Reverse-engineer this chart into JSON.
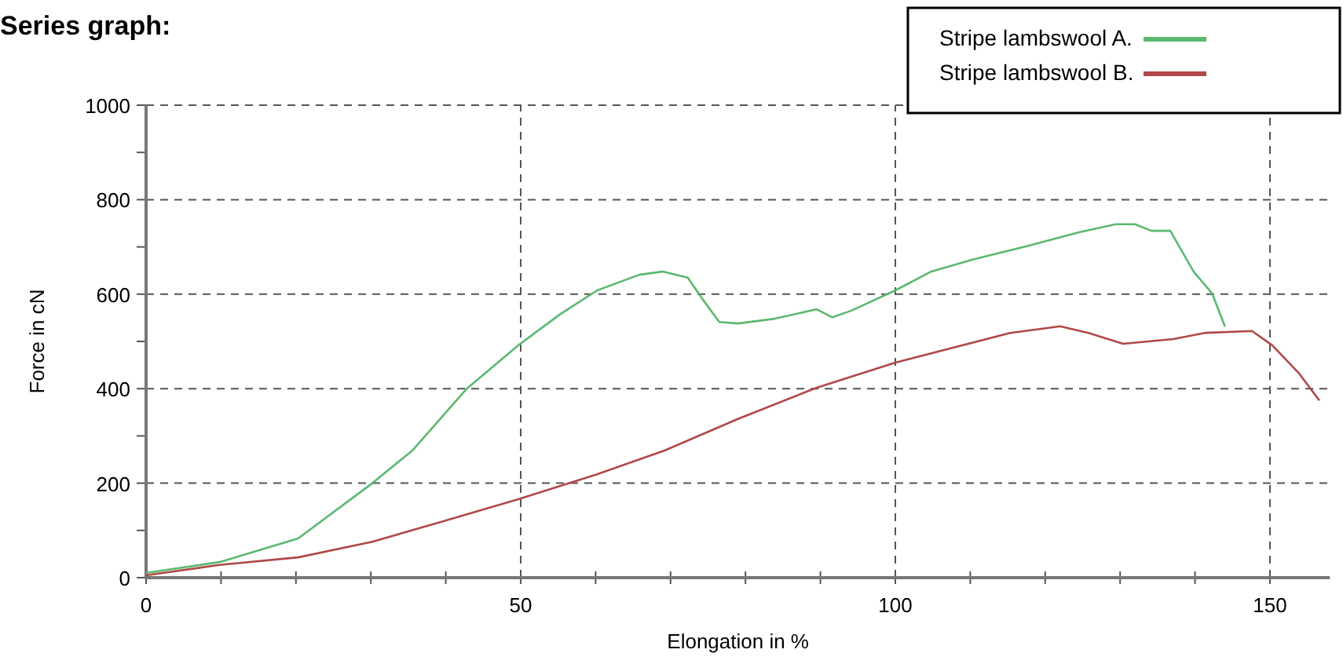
{
  "chart_data": {
    "type": "line",
    "title": "Series graph:",
    "xlabel": "Elongation in %",
    "ylabel": "Force in cN",
    "xlim": [
      0,
      158
    ],
    "ylim": [
      0,
      1000
    ],
    "xticks": [
      0,
      {
        "value": 10,
        "label": null
      },
      {
        "value": 20,
        "label": null
      },
      {
        "value": 30,
        "label": null
      },
      {
        "value": 40,
        "label": null
      },
      50,
      {
        "value": 60,
        "label": null
      },
      {
        "value": 70,
        "label": null
      },
      {
        "value": 80,
        "label": null
      },
      {
        "value": 90,
        "label": null
      },
      100,
      {
        "value": 110,
        "label": null
      },
      {
        "value": 120,
        "label": null
      },
      {
        "value": 130,
        "label": null
      },
      {
        "value": 140,
        "label": null
      },
      150
    ],
    "yticks": [
      0,
      {
        "value": 100,
        "label": null
      },
      200,
      {
        "value": 300,
        "label": null
      },
      400,
      {
        "value": 500,
        "label": null
      },
      600,
      {
        "value": 700,
        "label": null
      },
      800,
      {
        "value": 900,
        "label": null
      },
      1000
    ],
    "grid": true,
    "legend": "top right",
    "marker": "none",
    "line_style": "solid",
    "series": [
      {
        "name": "Stripe lambswool A.",
        "color": "#5cb870",
        "x": [
          0,
          9.8,
          20.3,
          30.2,
          35.6,
          42.8,
          49.7,
          55.3,
          60.2,
          65.8,
          69,
          72.3,
          74.2,
          76.5,
          79,
          83.9,
          89.5,
          91.6,
          94.1,
          100,
          104.8,
          110.5,
          117.4,
          124.5,
          129.4,
          132,
          134.2,
          136.7,
          139.8,
          142.3,
          144
        ],
        "values": [
          10,
          33,
          83,
          200,
          270,
          400,
          492,
          558,
          608,
          641,
          648,
          635,
          591,
          541,
          538,
          548,
          568,
          551,
          565,
          608,
          648,
          674,
          701,
          731,
          748,
          748,
          734,
          734,
          648,
          601,
          531
        ]
      },
      {
        "name": "Stripe lambswool B.",
        "color": "#b04848",
        "x": [
          0,
          9.8,
          20.3,
          30.2,
          39.8,
          49.7,
          60.2,
          69.2,
          79,
          89.5,
          100,
          115.3,
          122,
          125.8,
          130.4,
          137.1,
          141.3,
          147.6,
          150.3,
          153.9,
          156.6
        ],
        "values": [
          5,
          27,
          43,
          76,
          120,
          166,
          219,
          269,
          336,
          402,
          455,
          518,
          532,
          518,
          495,
          505,
          518,
          522,
          492,
          432,
          375
        ]
      }
    ]
  }
}
